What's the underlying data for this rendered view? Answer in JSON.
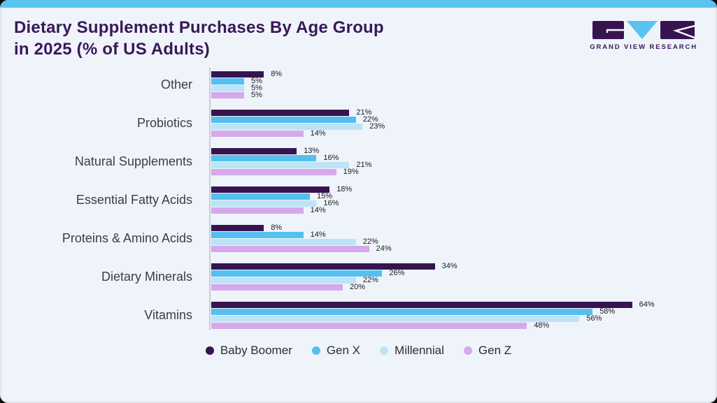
{
  "header": {
    "title_line1": "Dietary Supplement Purchases By Age Group",
    "title_line2": "in 2025 (% of US Adults)",
    "logo_text": "GRAND VIEW RESEARCH"
  },
  "colors": {
    "card_background": "#eef4fa",
    "top_strip": "#5ac3f0",
    "title_text": "#3a1758",
    "logo_purple": "#371450",
    "logo_blue": "#5ac3f0",
    "axis_line": "#c9ced6",
    "category_label": "#3d3d45",
    "value_label": "#191920"
  },
  "chart_data": {
    "type": "bar",
    "orientation": "horizontal",
    "title": "Dietary Supplement Purchases By Age Group in 2025 (% of US Adults)",
    "value_suffix": "%",
    "xlim": [
      0,
      70
    ],
    "grid": false,
    "legend_position": "bottom",
    "categories": [
      "Other",
      "Probiotics",
      "Natural Supplements",
      "Essential Fatty Acids",
      "Proteins & Amino Acids",
      "Dietary Minerals",
      "Vitamins"
    ],
    "series": [
      {
        "name": "Baby Boomer",
        "color": "#371450",
        "values": [
          8,
          21,
          13,
          18,
          8,
          34,
          64
        ]
      },
      {
        "name": "Gen X",
        "color": "#55c0ef",
        "values": [
          5,
          22,
          16,
          15,
          14,
          26,
          58
        ]
      },
      {
        "name": "Millennial",
        "color": "#bce3f8",
        "values": [
          5,
          23,
          21,
          16,
          22,
          22,
          56
        ]
      },
      {
        "name": "Gen Z",
        "color": "#d5a9ea",
        "values": [
          5,
          14,
          19,
          14,
          24,
          20,
          48
        ]
      }
    ]
  }
}
